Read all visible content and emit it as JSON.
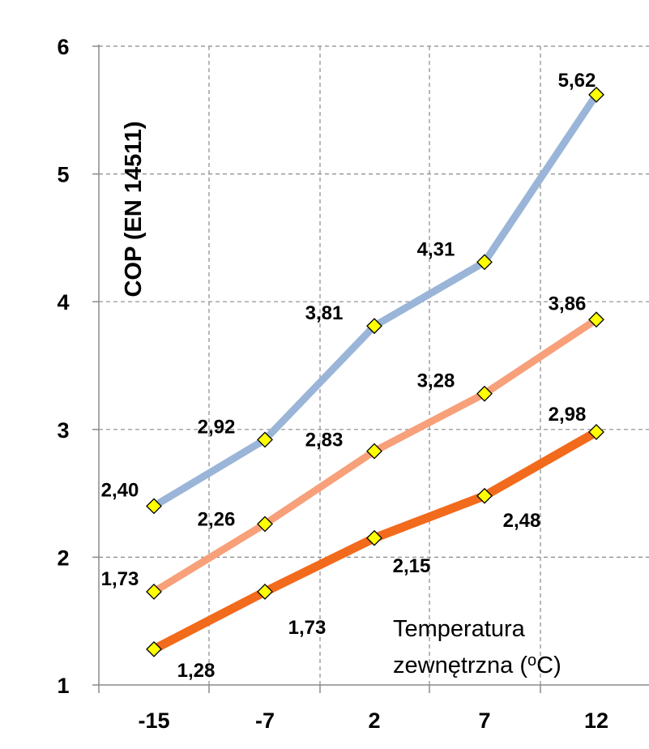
{
  "chart_data": {
    "type": "line",
    "categories": [
      "-15",
      "-7",
      "2",
      "7",
      "12"
    ],
    "ylim": [
      1,
      6
    ],
    "yticks": [
      "1",
      "2",
      "3",
      "4",
      "5",
      "6"
    ],
    "grid": true,
    "ylabel": "COP (EN 14511)",
    "xlabel": "Temperatura zewnętrzna (oC)",
    "xlabel_lines": [
      "Temperatura",
      "zewnętrzna (",
      "o",
      "C)"
    ],
    "series": [
      {
        "values": [
          2.4,
          2.92,
          3.81,
          4.31,
          5.62
        ],
        "labels": [
          "2,40",
          "2,92",
          "3,81",
          "4,31",
          "5,62"
        ],
        "color": "#9ab5d8"
      },
      {
        "values": [
          1.73,
          2.26,
          2.83,
          3.28,
          3.86
        ],
        "labels": [
          "1,73",
          "2,26",
          "2,83",
          "3,28",
          "3,86"
        ],
        "color": "#f7a07a"
      },
      {
        "values": [
          1.28,
          1.73,
          2.15,
          2.48,
          2.98
        ],
        "labels": [
          "1,28",
          "1,73",
          "2,15",
          "2,48",
          "2,98"
        ],
        "color": "#f26a1b"
      }
    ],
    "marker_color": "#ffff00"
  }
}
